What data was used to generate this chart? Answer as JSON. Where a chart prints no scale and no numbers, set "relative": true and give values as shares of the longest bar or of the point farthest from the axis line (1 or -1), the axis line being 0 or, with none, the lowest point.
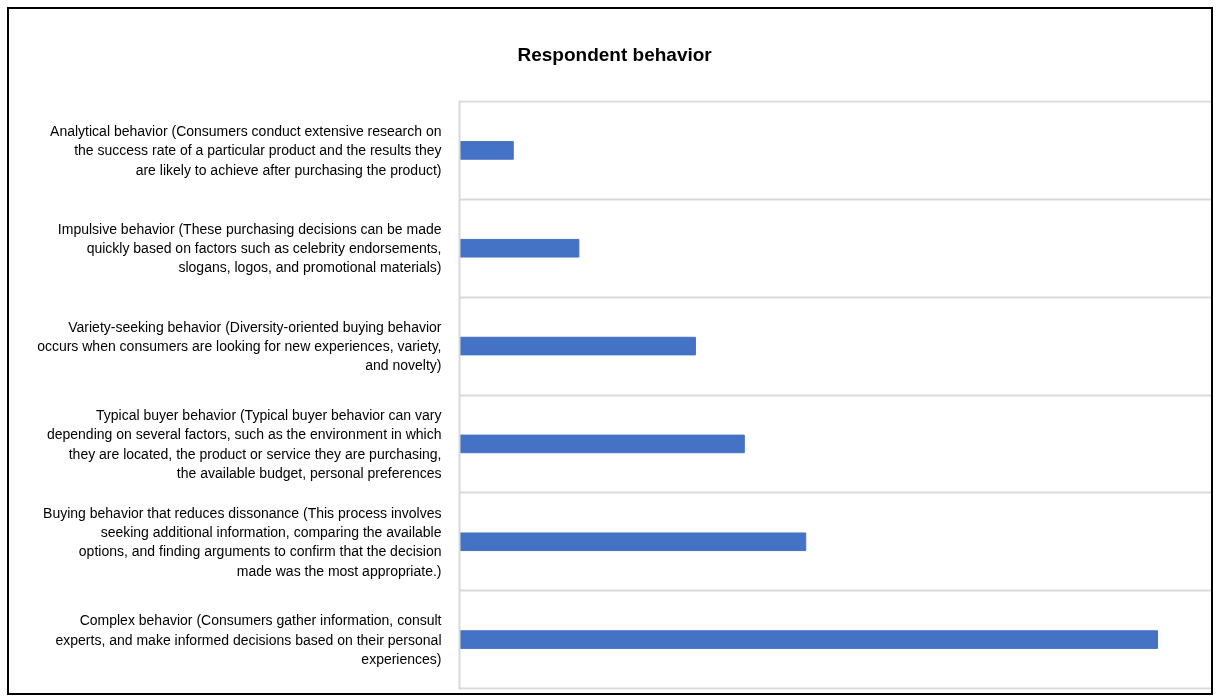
{
  "chart_data": {
    "type": "bar",
    "orientation": "horizontal",
    "relative": true,
    "title": "Respondent behavior",
    "categories": [
      "Analytical behavior (Consumers conduct extensive research on the success rate of a particular product and the results they are likely to achieve after purchasing the product)",
      "Impulsive behavior (These purchasing decisions can be made quickly based on factors such as celebrity endorsements, slogans, logos, and promotional materials)",
      "Variety-seeking behavior (Diversity-oriented buying behavior occurs when consumers are looking for new experiences, variety, and novelty)",
      "Typical buyer behavior (Typical buyer behavior can vary depending on several factors, such as the environment in which they are located, the product or service they are purchasing, the available budget, personal preferences",
      "Buying behavior that reduces dissonance (This process involves seeking additional information, comparing the available options, and finding arguments to confirm that the decision made was the most appropriate.)",
      "Complex behavior (Consumers gather information, consult experts, and make informed decisions based on their personal experiences)"
    ],
    "values": [
      0.077,
      0.171,
      0.338,
      0.408,
      0.496,
      1
    ],
    "color": "#4472c4",
    "grid": "y"
  }
}
